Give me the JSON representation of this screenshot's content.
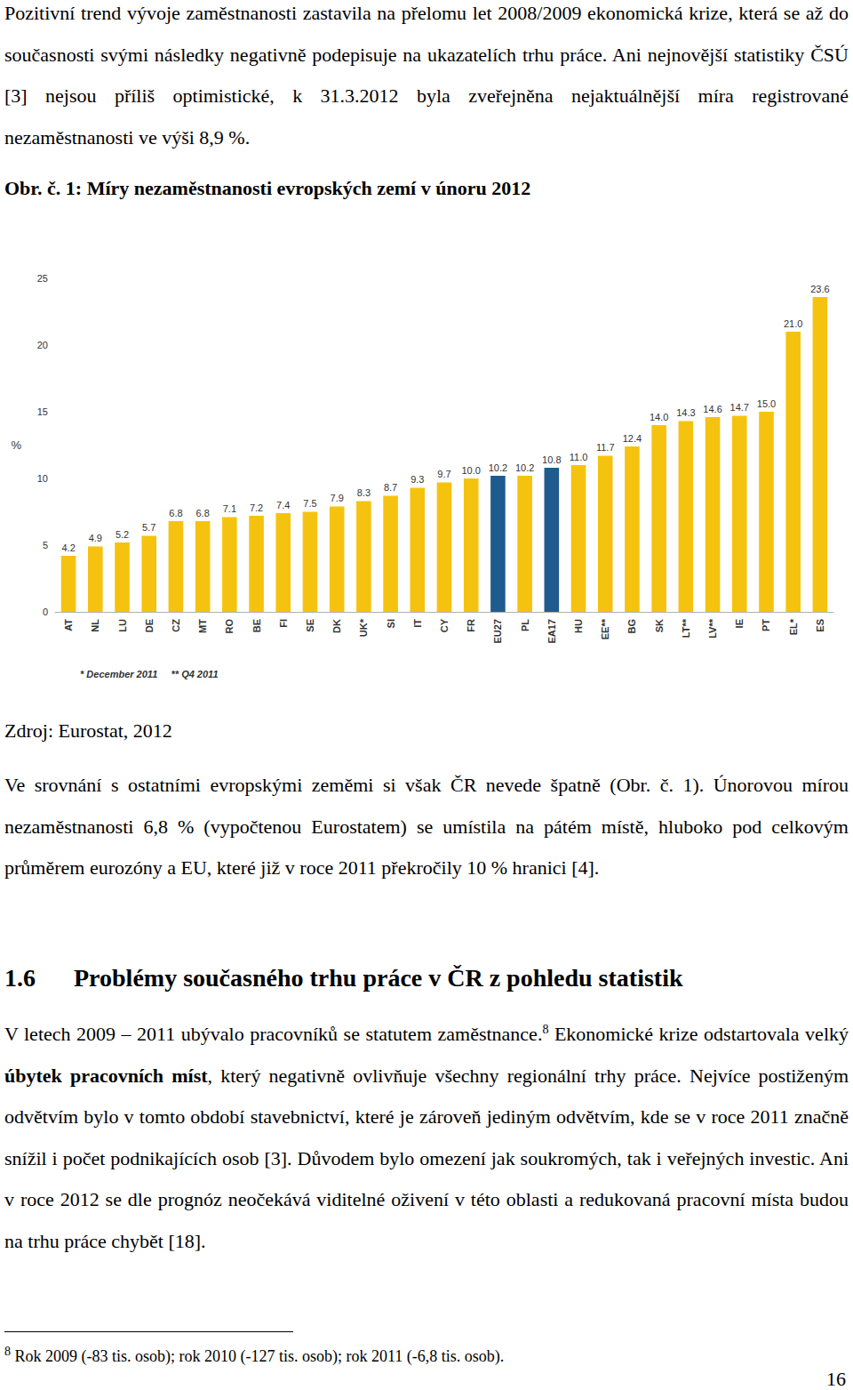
{
  "paragraph_1": "Pozitivní trend vývoje zaměstnanosti zastavila na přelomu let 2008/2009 ekonomická krize, která se až do současnosti svými následky negativně podepisuje na ukazatelích trhu práce. Ani nejnovější statistiky ČSÚ [3] nejsou příliš optimistické, k 31.3.2012 byla zveřejněna nejaktuálnější míra registrované nezaměstnanosti ve výši 8,9 %.",
  "figure": {
    "caption": "Obr. č. 1: Míry nezaměstnanosti evropských zemí v únoru 2012",
    "source": "Zdroj: Eurostat, 2012"
  },
  "chart_data": {
    "type": "bar",
    "categories": [
      "AT",
      "NL",
      "LU",
      "DE",
      "CZ",
      "MT",
      "RO",
      "BE",
      "FI",
      "SE",
      "DK",
      "UK*",
      "SI",
      "IT",
      "CY",
      "FR",
      "EU27",
      "PL",
      "EA17",
      "HU",
      "EE**",
      "BG",
      "SK",
      "LT**",
      "LV**",
      "IE",
      "PT",
      "EL*",
      "ES"
    ],
    "values": [
      4.2,
      4.9,
      5.2,
      5.7,
      6.8,
      6.8,
      7.1,
      7.2,
      7.4,
      7.5,
      7.9,
      8.3,
      8.7,
      9.3,
      9.7,
      10.0,
      10.2,
      10.2,
      10.8,
      11.0,
      11.7,
      12.4,
      14.0,
      14.3,
      14.6,
      14.7,
      15.0,
      21.0,
      23.6
    ],
    "value_labels": [
      "4.2",
      "4.9",
      "5.2",
      "5.7",
      "6.8",
      "6.8",
      "7.1",
      "7.2",
      "7.4",
      "7.5",
      "7.9",
      "8.3",
      "8.7",
      "9.3",
      "9.7",
      "10.0",
      "10.2",
      "10.2",
      "10.8",
      "11.0",
      "11.7",
      "12.4",
      "14.0",
      "14.3",
      "14.6",
      "14.7",
      "15.0",
      "21.0",
      "23.6"
    ],
    "colors": [
      "#f5c30f",
      "#f5c30f",
      "#f5c30f",
      "#f5c30f",
      "#f5c30f",
      "#f5c30f",
      "#f5c30f",
      "#f5c30f",
      "#f5c30f",
      "#f5c30f",
      "#f5c30f",
      "#f5c30f",
      "#f5c30f",
      "#f5c30f",
      "#f5c30f",
      "#f5c30f",
      "#1f5b8e",
      "#f5c30f",
      "#1f5b8e",
      "#f5c30f",
      "#f5c30f",
      "#f5c30f",
      "#f5c30f",
      "#f5c30f",
      "#f5c30f",
      "#f5c30f",
      "#f5c30f",
      "#f5c30f",
      "#f5c30f"
    ],
    "ylabel": "%",
    "ylim": [
      0,
      25
    ],
    "yticks": [
      0,
      5,
      10,
      15,
      20,
      25
    ],
    "annotation": "* December 2011     ** Q4 2011",
    "data_labels": true,
    "grid": false
  },
  "paragraph_2": "Ve srovnání s ostatními evropskými zeměmi si však ČR nevede špatně (Obr. č. 1). Únorovou mírou nezaměstnanosti 6,8 % (vypočtenou Eurostatem) se umístila na pátém místě, hluboko pod celkovým průměrem eurozóny a EU, které již v roce 2011 překročily 10 % hranici [4].",
  "section": {
    "number": "1.6",
    "title": "Problémy současného trhu práce v ČR z pohledu statistik"
  },
  "paragraph_3": [
    {
      "text": "V letech 2009 – 2011 ubývalo pracovníků se statutem zaměstnance."
    },
    {
      "text": "8",
      "style": "superscript"
    },
    {
      "text": " Ekonomické krize odstartovala velký "
    },
    {
      "text": "úbytek pracovních míst",
      "style": "bold"
    },
    {
      "text": ", který negativně ovlivňuje všechny regionální trhy práce. Nejvíce postiženým odvětvím bylo v tomto období stavebnictví, které je zároveň jediným odvětvím, kde se v roce 2011 značně snížil i počet podnikajících osob [3]. Důvodem bylo omezení jak soukromých, tak i veřejných investic. Ani v roce 2012 se dle prognóz neočekává viditelné oživení v této oblasti a redukovaná pracovní místa budou na trhu práce chybět [18]."
    }
  ],
  "footnote": {
    "mark": "8",
    "text": " Rok 2009 (-83 tis. osob); rok 2010 (-127 tis. osob); rok 2011 (-6,8 tis. osob)."
  },
  "page_number": "16"
}
